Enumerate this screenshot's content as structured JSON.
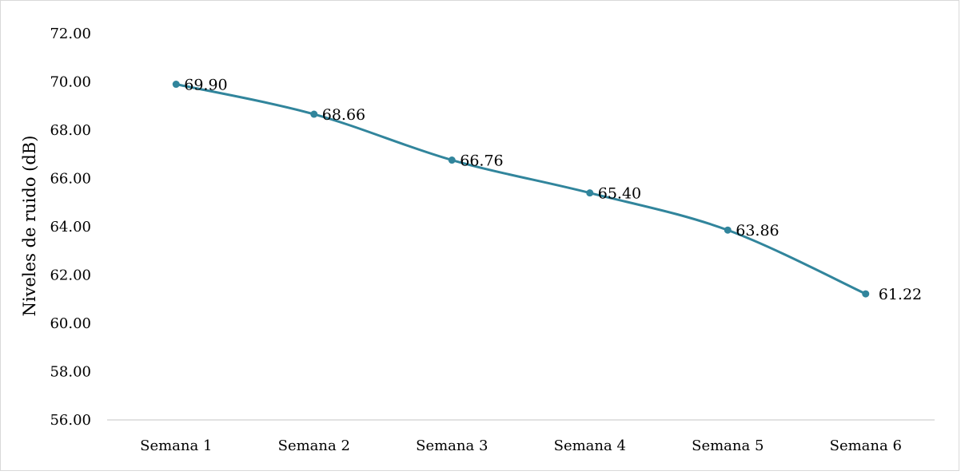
{
  "chart_data": {
    "type": "line",
    "title": "",
    "xlabel": "",
    "ylabel": "Niveles de ruido (dB)",
    "categories": [
      "Semana 1",
      "Semana 2",
      "Semana 3",
      "Semana 4",
      "Semana 5",
      "Semana 6"
    ],
    "series": [
      {
        "values": [
          69.9,
          68.66,
          66.76,
          65.4,
          63.86,
          61.22
        ],
        "data_labels": [
          "69.90",
          "68.66",
          "66.76",
          "65.40",
          "63.86",
          "61.22"
        ],
        "color": "#31859c"
      }
    ],
    "ylim": [
      56,
      72
    ],
    "ytick_labels": [
      "56.00",
      "58.00",
      "60.00",
      "62.00",
      "64.00",
      "66.00",
      "68.00",
      "70.00",
      "72.00"
    ],
    "grid": false,
    "legend": "none",
    "axis_color": "#d9d9d9"
  }
}
